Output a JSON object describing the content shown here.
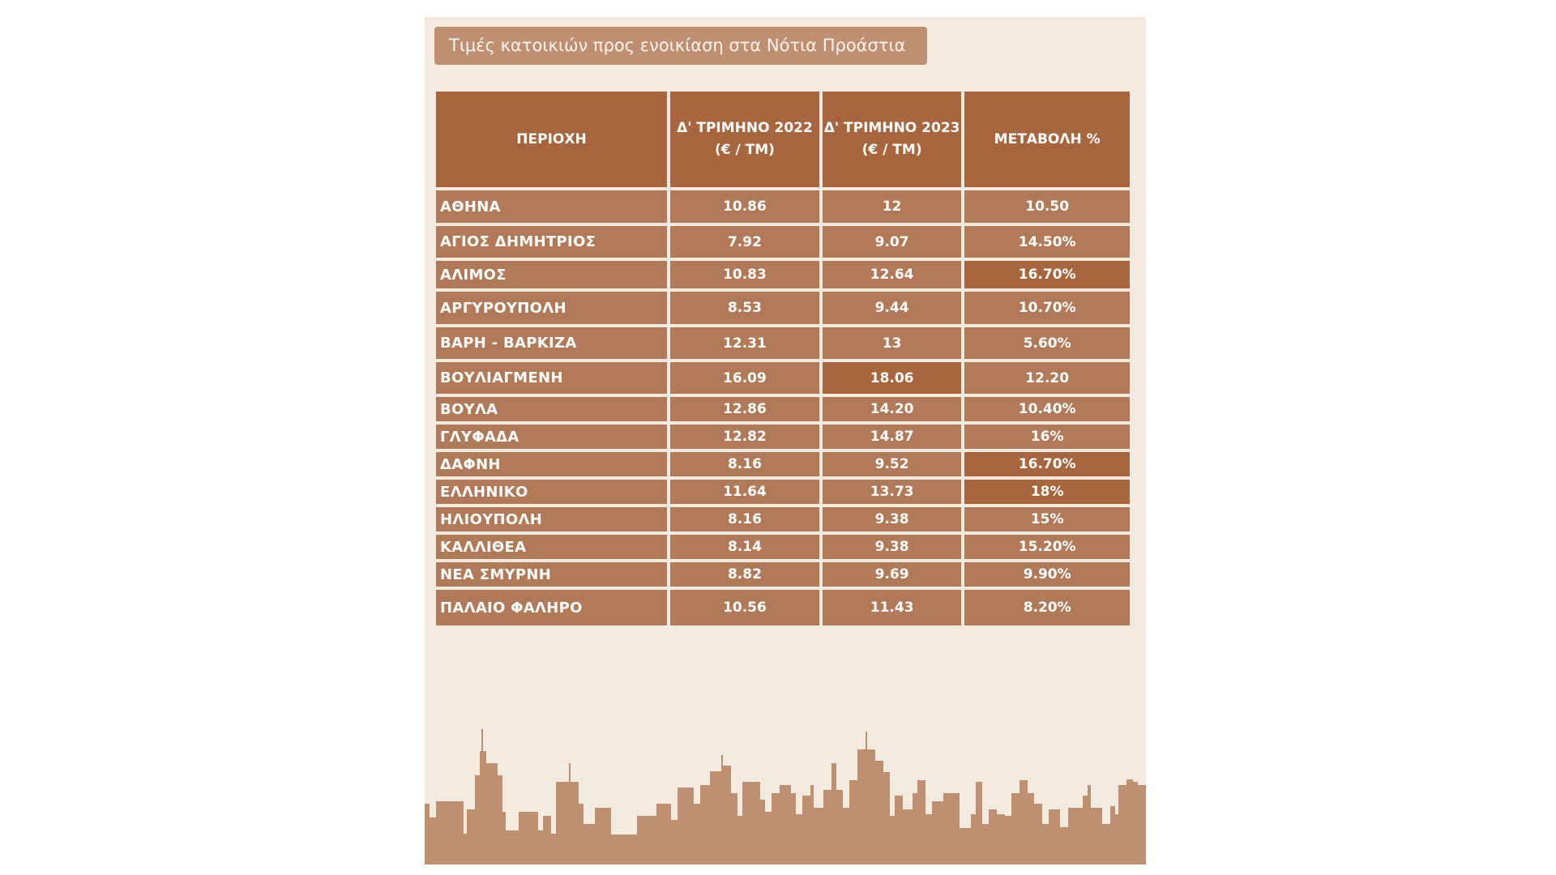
{
  "title": "Τιμές κατοικιών προς ενοικίαση στα Νότια Προάστια",
  "table": {
    "headers": [
      "ΠΕΡΙΟΧΗ",
      "Δ' ΤΡΙΜΗΝΟ 2022 (€ / ΤΜ)",
      "Δ' ΤΡΙΜΗΝΟ 2023 (€ / ΤΜ)",
      "ΜΕΤΑΒΟΛΗ %"
    ],
    "rows": [
      {
        "region": "ΑΘΗΝΑ",
        "q4_2022": "10.86",
        "q4_2023": "12",
        "change": "10.50"
      },
      {
        "region": "ΑΓΙΟΣ ΔΗΜΗΤΡΙΟΣ",
        "q4_2022": "7.92",
        "q4_2023": "9.07",
        "change": "14.50%"
      },
      {
        "region": "ΑΛΙΜΟΣ",
        "q4_2022": "10.83",
        "q4_2023": "12.64",
        "change": "16.70%"
      },
      {
        "region": "ΑΡΓΥΡΟΥΠΟΛΗ",
        "q4_2022": "8.53",
        "q4_2023": "9.44",
        "change": "10.70%"
      },
      {
        "region": "ΒΑΡΗ - ΒΑΡΚΙΖΑ",
        "q4_2022": "12.31",
        "q4_2023": "13",
        "change": "5.60%"
      },
      {
        "region": "ΒΟΥΛΙΑΓΜΕΝΗ",
        "q4_2022": "16.09",
        "q4_2023": "18.06",
        "change": "12.20"
      },
      {
        "region": "ΒΟΥΛΑ",
        "q4_2022": "12.86",
        "q4_2023": "14.20",
        "change": "10.40%"
      },
      {
        "region": "ΓΛΥΦΑΔΑ",
        "q4_2022": "12.82",
        "q4_2023": "14.87",
        "change": "16%"
      },
      {
        "region": "ΔΑΦΝΗ",
        "q4_2022": "8.16",
        "q4_2023": "9.52",
        "change": "16.70%"
      },
      {
        "region": "ΕΛΛΗΝΙΚΟ",
        "q4_2022": "11.64",
        "q4_2023": "13.73",
        "change": "18%"
      },
      {
        "region": "ΗΛΙΟΥΠΟΛΗ",
        "q4_2022": "8.16",
        "q4_2023": "9.38",
        "change": "15%"
      },
      {
        "region": "ΚΑΛΛΙΘΕΑ",
        "q4_2022": "8.14",
        "q4_2023": "9.38",
        "change": "15.20%"
      },
      {
        "region": "ΝΕΑ ΣΜΥΡΝΗ",
        "q4_2022": "8.82",
        "q4_2023": "9.69",
        "change": "9.90%"
      },
      {
        "region": "ΠΑΛΑΙΟ ΦΑΛΗΡΟ",
        "q4_2022": "10.56",
        "q4_2023": "11.43",
        "change": "8.20%"
      }
    ]
  },
  "colors": {
    "background": "#f2e9df",
    "title_box": "#bf8f72",
    "header_cell": "#a8663f",
    "body_cell": "#b07a58",
    "highlight_cell": "#a8663f",
    "skyline": "#bf8f72"
  }
}
